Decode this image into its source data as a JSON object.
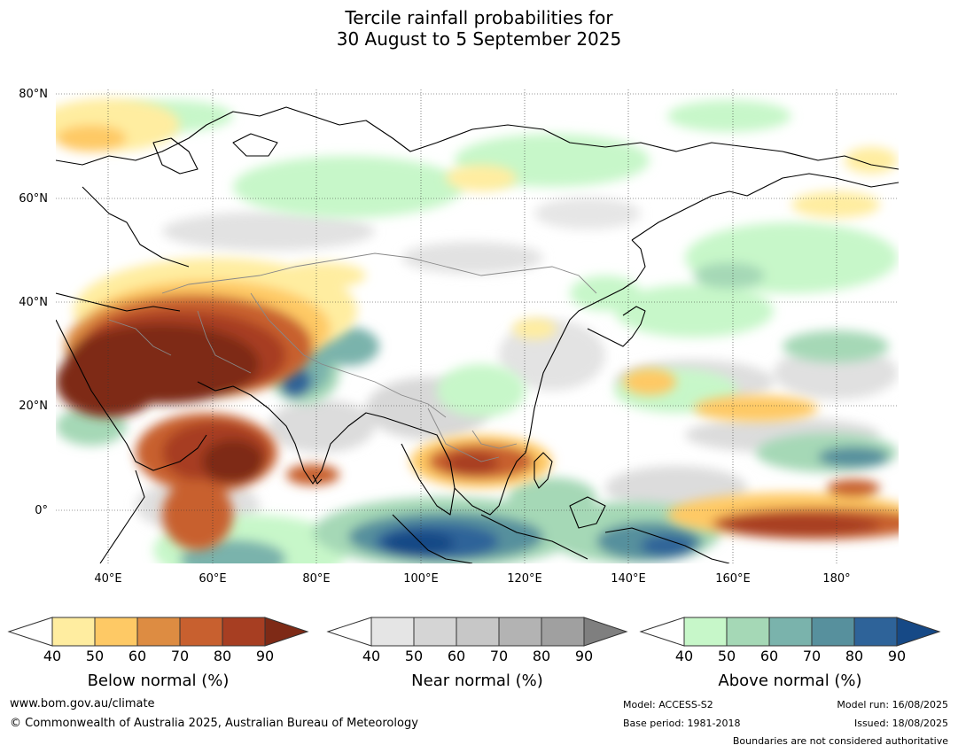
{
  "title": {
    "line1": "Tercile rainfall probabilities for",
    "line2": "30 August to 5 September 2025"
  },
  "map": {
    "lat_labels": [
      "80°N",
      "60°N",
      "40°N",
      "20°N",
      "0°"
    ],
    "lon_labels": [
      "40°E",
      "60°E",
      "80°E",
      "100°E",
      "120°E",
      "140°E",
      "160°E",
      "180°"
    ]
  },
  "colorbars": [
    {
      "name": "below",
      "title": "Below normal (%)",
      "ticks": [
        "40",
        "50",
        "60",
        "70",
        "80",
        "90"
      ],
      "colors": [
        "#ffeda0",
        "#fec965",
        "#dd8c42",
        "#c8602f",
        "#a73e22",
        "#7e2a16"
      ]
    },
    {
      "name": "near",
      "title": "Near normal (%)",
      "ticks": [
        "40",
        "50",
        "60",
        "70",
        "80",
        "90"
      ],
      "colors": [
        "#e5e5e5",
        "#d5d5d5",
        "#c7c7c7",
        "#b3b3b3",
        "#a0a0a0",
        "#7f7f7f"
      ]
    },
    {
      "name": "above",
      "title": "Above normal (%)",
      "ticks": [
        "40",
        "50",
        "60",
        "70",
        "80",
        "90"
      ],
      "colors": [
        "#c7f7c9",
        "#a5d8b6",
        "#7ab3ac",
        "#57909d",
        "#2e6399",
        "#164986"
      ]
    }
  ],
  "footer": {
    "website": "www.bom.gov.au/climate",
    "copyright": "© Commonwealth of Australia 2025, Australian Bureau of Meteorology",
    "model": "Model: ACCESS-S2",
    "base_period": "Base period: 1981-2018",
    "model_run": "Model run: 16/08/2025",
    "issued": "Issued: 18/08/2025",
    "boundaries_note": "Boundaries are not considered authoritative"
  }
}
